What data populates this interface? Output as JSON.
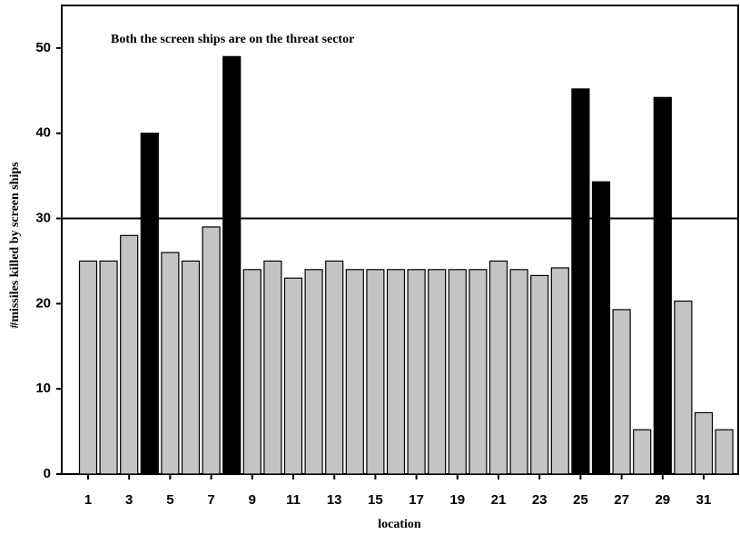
{
  "chart_data": {
    "type": "bar",
    "title": "Both the screen ships are on the threat sector",
    "x_label": "location",
    "y_label": "#missiles killed by screen ships",
    "categories": [
      "1",
      null,
      "3",
      null,
      "5",
      null,
      "7",
      null,
      "9",
      null,
      "11",
      null,
      "13",
      null,
      "15",
      null,
      "17",
      null,
      "19",
      null,
      "21",
      null,
      "23",
      null,
      "25",
      null,
      "27",
      null,
      "29",
      null,
      "31",
      null
    ],
    "values": [
      25,
      25,
      28,
      40,
      26,
      25,
      29,
      49,
      24,
      25,
      23,
      24,
      25,
      24,
      24,
      24,
      24,
      24,
      24,
      24,
      25,
      24,
      23.3,
      24.2,
      45.2,
      34.3,
      19.3,
      5.2,
      44.2,
      20.3,
      7.2,
      5.2
    ],
    "colors": [
      "#c4c4c4",
      "#c4c4c4",
      "#c4c4c4",
      "#000000",
      "#c4c4c4",
      "#c4c4c4",
      "#c4c4c4",
      "#000000",
      "#c4c4c4",
      "#c4c4c4",
      "#c4c4c4",
      "#c4c4c4",
      "#c4c4c4",
      "#c4c4c4",
      "#c4c4c4",
      "#c4c4c4",
      "#c4c4c4",
      "#c4c4c4",
      "#c4c4c4",
      "#c4c4c4",
      "#c4c4c4",
      "#c4c4c4",
      "#c4c4c4",
      "#c4c4c4",
      "#000000",
      "#000000",
      "#c4c4c4",
      "#c4c4c4",
      "#000000",
      "#c4c4c4",
      "#c4c4c4",
      "#c4c4c4"
    ],
    "reference_line": 30,
    "ylim": [
      0,
      55
    ],
    "yticks": [
      0,
      10,
      20,
      30,
      40,
      50
    ],
    "grid": false
  }
}
